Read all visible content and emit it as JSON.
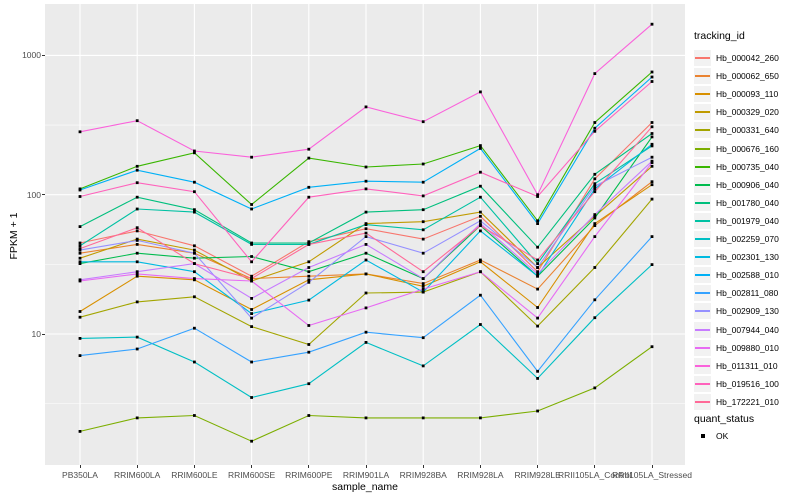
{
  "chart_data": {
    "type": "line",
    "xlabel": "sample_name",
    "ylabel": "FPKM + 1",
    "y_scale": "log10",
    "ylim": [
      1.1,
      2300
    ],
    "y_ticks": [
      1000,
      100,
      10
    ],
    "y_tick_labels": [
      "1000",
      "100",
      "10"
    ],
    "y_minor_gridlines": [
      316.2,
      31.62,
      3.162
    ],
    "grid": true,
    "panel_background": "#EBEBEB",
    "gridline_color": "#FFFFFF",
    "point_marker": {
      "shape": "square",
      "color": "#000000",
      "size": 2.8
    },
    "legend_position": "right",
    "legend_title": "tracking_id",
    "categories": [
      "PB350LA",
      "RRIM600LA",
      "RRIM600LE",
      "RRIM600SE",
      "RRIM600PE",
      "RRIM901LA",
      "RRIM928BA",
      "RRIM928LA",
      "RRIM928LE",
      "RRII105LA_Control",
      "RRII105LA_Stressed"
    ],
    "series": [
      {
        "name": "Hb_000042_260",
        "color": "#F8766D",
        "values": [
          45,
          55,
          43,
          26,
          46,
          57,
          48,
          70,
          28,
          130,
          330
        ]
      },
      {
        "name": "Hb_000062_650",
        "color": "#EA8331",
        "values": [
          38,
          44,
          38,
          25,
          26,
          27,
          23,
          34,
          21,
          60,
          124
        ]
      },
      {
        "name": "Hb_000093_110",
        "color": "#D89000",
        "values": [
          14.5,
          26,
          24.5,
          15,
          24.5,
          27,
          22,
          33,
          15.5,
          62,
          118
        ]
      },
      {
        "name": "Hb_000329_020",
        "color": "#C09B00",
        "values": [
          35,
          48,
          40,
          24,
          33,
          62,
          64,
          75,
          30,
          70,
          160
        ]
      },
      {
        "name": "Hb_000331_640",
        "color": "#A3A500",
        "values": [
          13.2,
          17,
          18.5,
          11.3,
          8.4,
          19.7,
          20,
          28,
          11.4,
          30,
          93
        ]
      },
      {
        "name": "Hb_000676_160",
        "color": "#7CAE00",
        "values": [
          2.0,
          2.5,
          2.6,
          1.7,
          2.6,
          2.5,
          2.5,
          2.5,
          2.8,
          4.1,
          8.1
        ]
      },
      {
        "name": "Hb_000735_040",
        "color": "#39B600",
        "values": [
          110,
          160,
          200,
          85,
          183,
          158,
          166,
          225,
          65,
          330,
          760
        ]
      },
      {
        "name": "Hb_000906_040",
        "color": "#00BB4E",
        "values": [
          32,
          38,
          35,
          36,
          28,
          38,
          25,
          60,
          26,
          68,
          260
        ]
      },
      {
        "name": "Hb_001780_040",
        "color": "#00BF7D",
        "values": [
          59,
          96,
          78,
          45,
          45,
          75,
          78,
          115,
          42,
          140,
          275
        ]
      },
      {
        "name": "Hb_001979_040",
        "color": "#00C1A3",
        "values": [
          43,
          79,
          75,
          44,
          44,
          61,
          56,
          96,
          32,
          120,
          224
        ]
      },
      {
        "name": "Hb_002259_070",
        "color": "#00BFC4",
        "values": [
          9.3,
          9.5,
          6.3,
          3.5,
          4.4,
          8.7,
          5.9,
          11.7,
          4.8,
          13.1,
          31.5
        ]
      },
      {
        "name": "Hb_002301_130",
        "color": "#00BAE0",
        "values": [
          33,
          33,
          28,
          14,
          17.5,
          34,
          20,
          55,
          26,
          110,
          230
        ]
      },
      {
        "name": "Hb_002588_010",
        "color": "#00B0F6",
        "values": [
          108,
          150,
          123,
          79,
          113,
          125,
          123,
          215,
          62,
          300,
          700
        ]
      },
      {
        "name": "Hb_002811_080",
        "color": "#35A2FF",
        "values": [
          7.0,
          7.8,
          11,
          6.3,
          7.4,
          10.3,
          9.4,
          19,
          5.4,
          17.6,
          50
        ]
      },
      {
        "name": "Hb_002909_130",
        "color": "#9590FF",
        "values": [
          40,
          47,
          38,
          13,
          23.5,
          50,
          38,
          65,
          30,
          115,
          186
        ]
      },
      {
        "name": "Hb_007944_040",
        "color": "#C77CFF",
        "values": [
          24.5,
          28,
          32,
          18,
          30,
          44,
          25,
          62,
          27,
          72,
          174
        ]
      },
      {
        "name": "Hb_009880_010",
        "color": "#E76BF3",
        "values": [
          24,
          27,
          25,
          24,
          11.5,
          15.4,
          21,
          28,
          13,
          50,
          170
        ]
      },
      {
        "name": "Hb_011311_010",
        "color": "#FA62DB",
        "values": [
          283,
          340,
          206,
          186,
          212,
          427,
          334,
          547,
          100,
          740,
          1675
        ]
      },
      {
        "name": "Hb_019516_100",
        "color": "#FF62BC",
        "values": [
          97,
          122,
          105,
          33,
          96,
          110,
          98,
          145,
          97,
          285,
          650
        ]
      },
      {
        "name": "Hb_172221_010",
        "color": "#FF6A98",
        "values": [
          41,
          58,
          32,
          25,
          44,
          53,
          28,
          60,
          34,
          105,
          307
        ]
      }
    ],
    "quant_status": {
      "title": "quant_status",
      "values": [
        "OK"
      ]
    }
  }
}
